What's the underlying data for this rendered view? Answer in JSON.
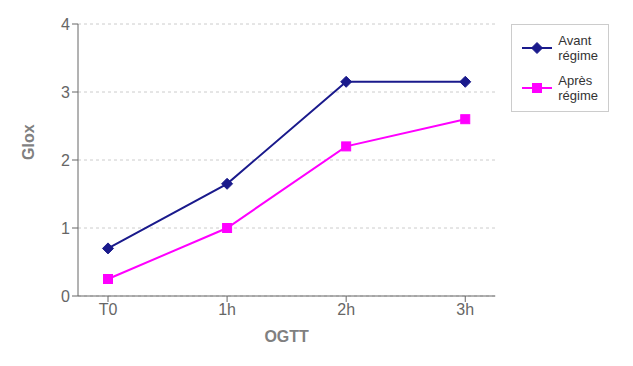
{
  "chart_data": {
    "type": "line",
    "categories": [
      "T0",
      "1h",
      "2h",
      "3h"
    ],
    "series": [
      {
        "name": "Avant\nrégime",
        "color": "#1a1a8c",
        "marker": "diamond",
        "values": [
          0.7,
          1.65,
          3.15,
          3.15
        ]
      },
      {
        "name": "Après\nrégime",
        "color": "#ff00ff",
        "marker": "square",
        "values": [
          0.25,
          1.0,
          2.2,
          2.6
        ]
      }
    ],
    "xlabel": "OGTT",
    "ylabel": "Glox",
    "ylim": [
      0,
      4
    ],
    "yticks": [
      0,
      1,
      2,
      3,
      4
    ],
    "grid": true,
    "legend": "right"
  }
}
